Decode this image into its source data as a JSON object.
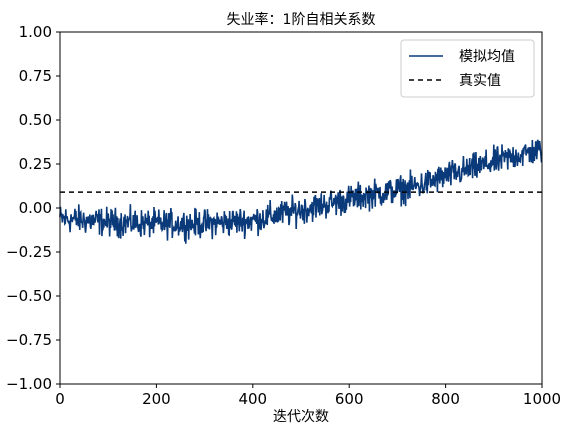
{
  "chart_data": {
    "type": "line",
    "title": "失业率：1阶自相关系数",
    "xlabel": "迭代次数",
    "ylabel": "",
    "xlim": [
      0,
      1000
    ],
    "ylim": [
      -1.0,
      1.0
    ],
    "xticks": [
      "0",
      "200",
      "400",
      "600",
      "800",
      "1000"
    ],
    "yticks": [
      "1.00",
      "0.75",
      "0.50",
      "0.25",
      "0.00",
      "−0.25",
      "−0.50",
      "−0.75",
      "−1.00"
    ],
    "ytick_values": [
      1.0,
      0.75,
      0.5,
      0.25,
      0.0,
      -0.25,
      -0.5,
      -0.75,
      -1.0
    ],
    "xtick_values": [
      0,
      200,
      400,
      600,
      800,
      1000
    ],
    "grid": false,
    "legend_position": "top-right",
    "series": [
      {
        "name": "模拟均值",
        "style": "solid",
        "color": "#0a3a7a",
        "trend_x": [
          0,
          100,
          200,
          300,
          400,
          450,
          500,
          550,
          600,
          650,
          700,
          750,
          800,
          850,
          900,
          950,
          1000
        ],
        "trend_y": [
          -0.06,
          -0.08,
          -0.09,
          -0.09,
          -0.07,
          -0.04,
          -0.01,
          0.02,
          0.05,
          0.08,
          0.1,
          0.13,
          0.18,
          0.22,
          0.26,
          0.3,
          0.33
        ],
        "noise_amplitude": 0.07,
        "n_points": 1000
      },
      {
        "name": "真实值",
        "style": "dashed",
        "color": "#000000",
        "x": [
          0,
          1000
        ],
        "y": [
          0.09,
          0.09
        ]
      }
    ]
  }
}
